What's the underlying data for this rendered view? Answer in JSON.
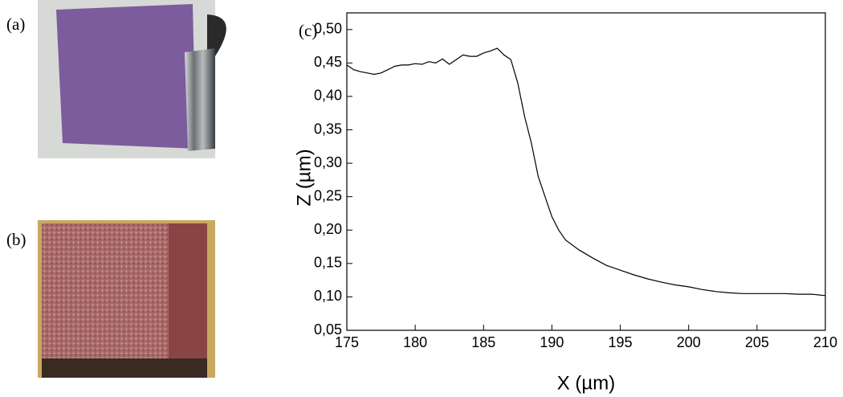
{
  "chart_data": {
    "type": "line",
    "annotations": [
      "(a)",
      "(b)",
      "(c)"
    ],
    "xlabel": "X (µm)",
    "ylabel": "Z (µm)",
    "xlim": [
      175,
      210
    ],
    "xticks": [
      175,
      180,
      185,
      190,
      195,
      200,
      205,
      210
    ],
    "ylim": [
      0.05,
      0.525
    ],
    "yticks": [
      {
        "value": 0.05,
        "label": "0,05"
      },
      {
        "value": 0.1,
        "label": "0,10"
      },
      {
        "value": 0.15,
        "label": "0,15"
      },
      {
        "value": 0.2,
        "label": "0,20"
      },
      {
        "value": 0.25,
        "label": "0,25"
      },
      {
        "value": 0.3,
        "label": "0,30"
      },
      {
        "value": 0.35,
        "label": "0,35"
      },
      {
        "value": 0.4,
        "label": "0,40"
      },
      {
        "value": 0.45,
        "label": "0,45"
      },
      {
        "value": 0.5,
        "label": "0,50"
      }
    ],
    "series": [
      {
        "color": "#000000",
        "x": [
          175,
          175.5,
          176,
          176.5,
          177,
          177.5,
          178,
          178.5,
          179,
          179.5,
          180,
          180.5,
          181,
          181.5,
          182,
          182.5,
          183,
          183.5,
          184,
          184.5,
          185,
          185.5,
          186,
          186.5,
          187,
          187.5,
          188,
          188.5,
          189,
          189.5,
          190,
          190.5,
          191,
          192,
          193,
          194,
          195,
          196,
          197,
          198,
          199,
          200,
          201,
          202,
          203,
          204,
          205,
          206,
          207,
          208,
          209,
          210
        ],
        "values": [
          0.447,
          0.44,
          0.437,
          0.435,
          0.433,
          0.435,
          0.44,
          0.445,
          0.447,
          0.447,
          0.449,
          0.448,
          0.452,
          0.45,
          0.456,
          0.448,
          0.455,
          0.462,
          0.46,
          0.46,
          0.465,
          0.468,
          0.472,
          0.462,
          0.455,
          0.42,
          0.37,
          0.33,
          0.28,
          0.25,
          0.22,
          0.2,
          0.185,
          0.17,
          0.158,
          0.147,
          0.14,
          0.133,
          0.127,
          0.122,
          0.118,
          0.115,
          0.111,
          0.108,
          0.106,
          0.105,
          0.105,
          0.105,
          0.105,
          0.104,
          0.104,
          0.102
        ]
      }
    ]
  }
}
